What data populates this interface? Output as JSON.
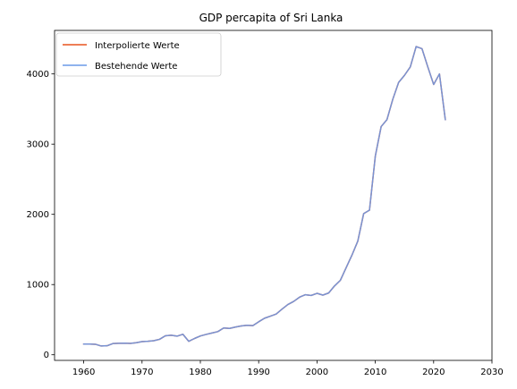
{
  "chart_data": {
    "type": "line",
    "title": "GDP percapita of Sri Lanka",
    "xlabel": "",
    "ylabel": "",
    "xlim": [
      1955,
      2030
    ],
    "ylim": [
      -80,
      4620
    ],
    "xticks": [
      1960,
      1970,
      1980,
      1990,
      2000,
      2010,
      2020,
      2030
    ],
    "yticks": [
      0,
      1000,
      2000,
      3000,
      4000
    ],
    "grid": false,
    "legend_position": "top-left",
    "x": [
      1960,
      1961,
      1962,
      1963,
      1964,
      1965,
      1966,
      1967,
      1968,
      1969,
      1970,
      1971,
      1972,
      1973,
      1974,
      1975,
      1976,
      1977,
      1978,
      1979,
      1980,
      1981,
      1982,
      1983,
      1984,
      1985,
      1986,
      1987,
      1988,
      1989,
      1990,
      1991,
      1992,
      1993,
      1994,
      1995,
      1996,
      1997,
      1998,
      1999,
      2000,
      2001,
      2002,
      2003,
      2004,
      2005,
      2006,
      2007,
      2008,
      2009,
      2010,
      2011,
      2012,
      2013,
      2014,
      2015,
      2016,
      2017,
      2018,
      2019,
      2020,
      2021,
      2022
    ],
    "series": [
      {
        "name": "Interpolierte Werte",
        "color": "#e8531f",
        "values": [
          152,
          152,
          150,
          125,
          128,
          160,
          164,
          165,
          162,
          172,
          188,
          192,
          200,
          220,
          270,
          278,
          265,
          292,
          192,
          232,
          268,
          290,
          310,
          330,
          382,
          375,
          395,
          410,
          420,
          415,
          470,
          520,
          550,
          580,
          650,
          715,
          760,
          820,
          855,
          845,
          875,
          850,
          880,
          980,
          1060,
          1240,
          1420,
          1620,
          2010,
          2060,
          2830,
          3250,
          3350,
          3640,
          3880,
          3980,
          4100,
          4390,
          4360,
          4100,
          3850,
          4000,
          3350
        ]
      },
      {
        "name": "Bestehende Werte",
        "color": "#6a9ae8",
        "values": [
          152,
          152,
          150,
          125,
          128,
          160,
          164,
          165,
          162,
          172,
          188,
          192,
          200,
          220,
          270,
          278,
          265,
          292,
          192,
          232,
          268,
          290,
          310,
          330,
          382,
          375,
          395,
          410,
          420,
          415,
          470,
          520,
          550,
          580,
          650,
          715,
          760,
          820,
          855,
          845,
          875,
          850,
          880,
          980,
          1060,
          1240,
          1420,
          1620,
          2010,
          2060,
          2830,
          3250,
          3350,
          3640,
          3880,
          3980,
          4100,
          4390,
          4360,
          4100,
          3850,
          4000,
          3350
        ]
      }
    ]
  }
}
